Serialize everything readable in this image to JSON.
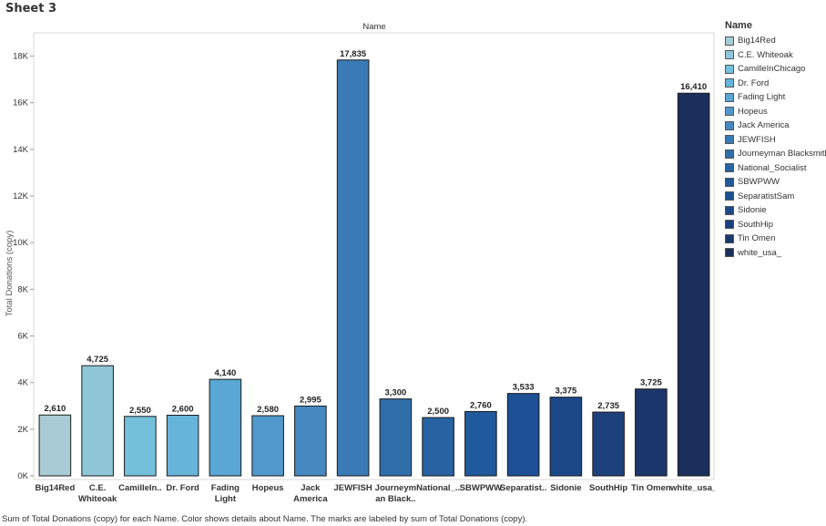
{
  "sheet_title": "Sheet 3",
  "caption": "Sum of Total Donations (copy) for each Name.  Color shows details about Name.  The marks are labeled by sum of Total Donations (copy).",
  "legend": {
    "title": "Name",
    "items": [
      {
        "label": "Big14Red",
        "color": "#a8cbd6"
      },
      {
        "label": "C.E. Whiteoak",
        "color": "#8ec6d8"
      },
      {
        "label": "CamilleInChicago",
        "color": "#74c0db"
      },
      {
        "label": "Dr. Ford",
        "color": "#66b4d8"
      },
      {
        "label": "Fading Light",
        "color": "#5aa6d4"
      },
      {
        "label": "Hopeus",
        "color": "#5199cc"
      },
      {
        "label": "Jack America",
        "color": "#4589c0"
      },
      {
        "label": "JEWFISH",
        "color": "#3a7ab5"
      },
      {
        "label": "Journeyman Blacksmith",
        "color": "#306eaa"
      },
      {
        "label": "National_Socialist",
        "color": "#2763a2"
      },
      {
        "label": "SBWPWW",
        "color": "#20599c"
      },
      {
        "label": "SeparatistSam",
        "color": "#1d5094"
      },
      {
        "label": "Sidonie",
        "color": "#1c4888"
      },
      {
        "label": "SouthHip",
        "color": "#1c407c"
      },
      {
        "label": "Tin Omen",
        "color": "#1c376c"
      },
      {
        "label": "white_usa_",
        "color": "#1c2f5c"
      }
    ]
  },
  "chart_data": {
    "type": "bar",
    "title": "Name",
    "ylabel": "Total Donations (copy)",
    "xlabel": "",
    "ylim": [
      0,
      19000
    ],
    "yticks": [
      0,
      2000,
      4000,
      6000,
      8000,
      10000,
      12000,
      14000,
      16000,
      18000
    ],
    "ytick_labels": [
      "0K",
      "2K",
      "4K",
      "6K",
      "8K",
      "10K",
      "12K",
      "14K",
      "16K",
      "18K"
    ],
    "categories": [
      [
        "Big14Red"
      ],
      [
        "C.E.",
        "Whiteoak"
      ],
      [
        "CamilleIn.."
      ],
      [
        "Dr. Ford"
      ],
      [
        "Fading",
        "Light"
      ],
      [
        "Hopeus"
      ],
      [
        "Jack",
        "America"
      ],
      [
        "JEWFISH"
      ],
      [
        "Journeym",
        "an Black.."
      ],
      [
        "National_.."
      ],
      [
        "SBWPWW"
      ],
      [
        "Separatist.."
      ],
      [
        "Sidonie"
      ],
      [
        "SouthHip"
      ],
      [
        "Tin Omen"
      ],
      [
        "white_usa_"
      ]
    ],
    "values": [
      2610,
      4725,
      2550,
      2600,
      4140,
      2580,
      2995,
      17835,
      3300,
      2500,
      2760,
      3533,
      3375,
      2735,
      3725,
      16410
    ],
    "value_labels": [
      "2,610",
      "4,725",
      "2,550",
      "2,600",
      "4,140",
      "2,580",
      "2,995",
      "17,835",
      "3,300",
      "2,500",
      "2,760",
      "3,533",
      "3,375",
      "2,735",
      "3,725",
      "16,410"
    ],
    "colors": [
      "#a8cbd6",
      "#8ec6d8",
      "#74c0db",
      "#66b4d8",
      "#5aa6d4",
      "#5199cc",
      "#4589c0",
      "#3a7ab5",
      "#306eaa",
      "#2763a2",
      "#20599c",
      "#1d5094",
      "#1c4888",
      "#1c407c",
      "#1c376c",
      "#1c2f5c"
    ],
    "grid": false
  }
}
